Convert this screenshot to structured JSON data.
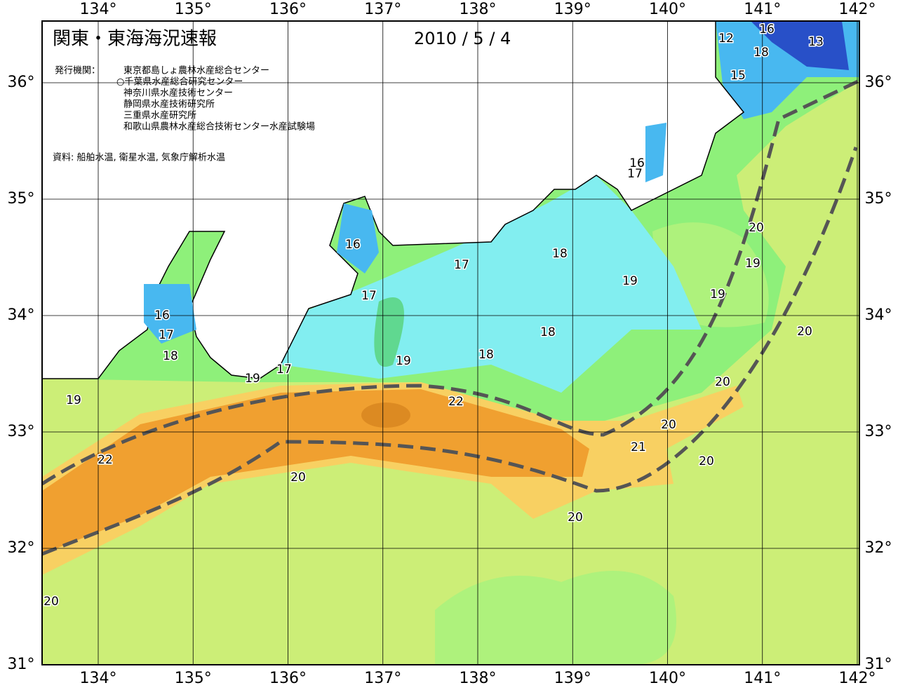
{
  "header": {
    "title": "関東・東海海況速報",
    "date": "2010 / 5 / 4"
  },
  "issuers": {
    "label": "発行機関：",
    "names": [
      "東京都島しょ農林水産総合センター",
      "○千葉県水産総合研究センター",
      "神奈川県水産技術センター",
      "静岡県水産技術研究所",
      "三重県水産研究所",
      "和歌山県農林水産総合技術センター水産試験場"
    ]
  },
  "source": "資料: 船舶水温, 衛星水温, 気象庁解析水温",
  "axes": {
    "lon_ticks": [
      {
        "value": 134,
        "label": "134°"
      },
      {
        "value": 135,
        "label": "135°"
      },
      {
        "value": 136,
        "label": "136°"
      },
      {
        "value": 137,
        "label": "137°"
      },
      {
        "value": 138,
        "label": "138°"
      },
      {
        "value": 139,
        "label": "139°"
      },
      {
        "value": 140,
        "label": "140°"
      },
      {
        "value": 141,
        "label": "141°"
      },
      {
        "value": 142,
        "label": "142°"
      }
    ],
    "lat_ticks": [
      {
        "value": 31,
        "label": "31°"
      },
      {
        "value": 32,
        "label": "32°"
      },
      {
        "value": 33,
        "label": "33°"
      },
      {
        "value": 34,
        "label": "34°"
      },
      {
        "value": 35,
        "label": "35°"
      },
      {
        "value": 36,
        "label": "36°"
      }
    ]
  },
  "contour_labels": [
    "16",
    "12",
    "13",
    "18",
    "15",
    "16",
    "17",
    "16",
    "17",
    "18",
    "19",
    "19",
    "20",
    "19",
    "17",
    "16",
    "17",
    "18",
    "18",
    "18",
    "19",
    "19",
    "17",
    "19",
    "22",
    "20",
    "20",
    "20",
    "21",
    "22",
    "20",
    "20",
    "20",
    "20"
  ]
}
